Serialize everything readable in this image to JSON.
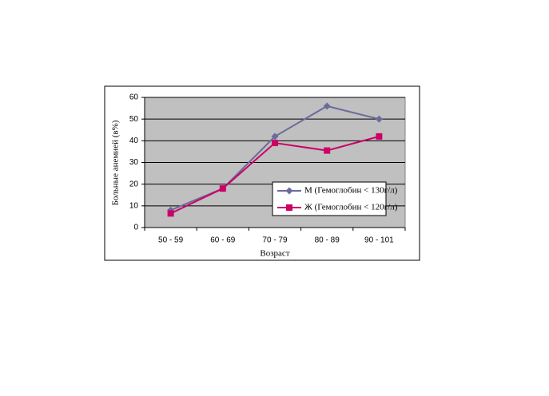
{
  "chart_data": {
    "type": "line",
    "x_label": "Возраст",
    "y_label": "Больные анемией (в%)",
    "categories": [
      "50 - 59",
      "60 - 69",
      "70 - 79",
      "80 - 89",
      "90 - 101"
    ],
    "series": [
      {
        "name": "М (Гемоглобин < 130г/л)",
        "color": "#6b6b9b",
        "marker": "diamond",
        "values": [
          8,
          18,
          42,
          56,
          50
        ]
      },
      {
        "name": "Ж (Гемоглобин < 120г/л)",
        "color": "#cc0066",
        "marker": "square",
        "values": [
          6.5,
          18,
          39,
          35.5,
          42
        ]
      }
    ],
    "ylim": [
      0,
      60
    ],
    "yticks": [
      0,
      10,
      20,
      30,
      40,
      50,
      60
    ],
    "grid": true
  }
}
